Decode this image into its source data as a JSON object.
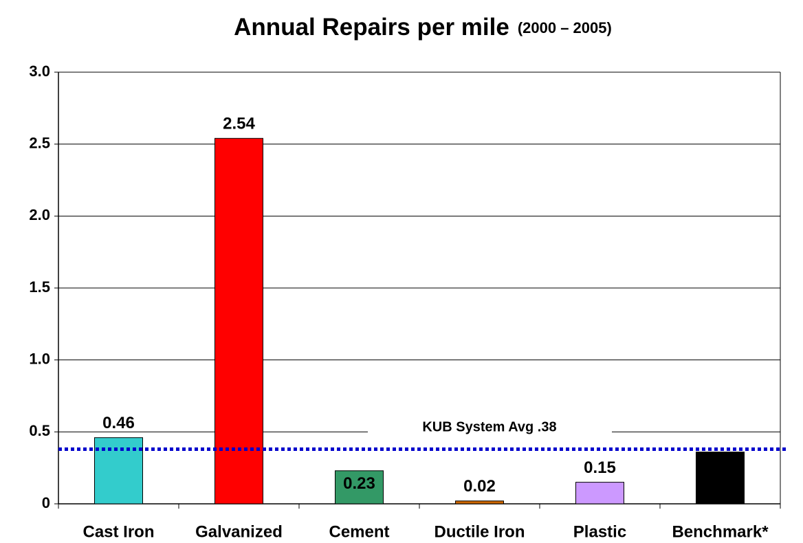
{
  "chart_data": {
    "type": "bar",
    "title": "Annual Repairs per mile",
    "subtitle": "(2000 – 2005)",
    "categories": [
      "Cast Iron",
      "Galvanized",
      "Cement",
      "Ductile Iron",
      "Plastic",
      "Benchmark*"
    ],
    "values": [
      0.46,
      2.54,
      0.23,
      0.02,
      0.15,
      0.36
    ],
    "colors": [
      "#33cccc",
      "#ff0000",
      "#339966",
      "#cc6600",
      "#cc99ff",
      "#000000"
    ],
    "label_inside": [
      false,
      false,
      true,
      false,
      false,
      true
    ],
    "ylim": [
      0,
      3
    ],
    "yticks": [
      0,
      0.5,
      {
        "value": 1,
        "label": "1.0"
      },
      {
        "value": 1.5,
        "label": "1.5"
      },
      {
        "value": 2,
        "label": "2.0"
      },
      {
        "value": 2.5,
        "label": "2.5"
      },
      {
        "value": 3,
        "label": "3.0"
      }
    ],
    "grid": true,
    "reference_line": {
      "value": 0.38,
      "label": "KUB System Avg .38",
      "color": "#0000cc"
    }
  }
}
